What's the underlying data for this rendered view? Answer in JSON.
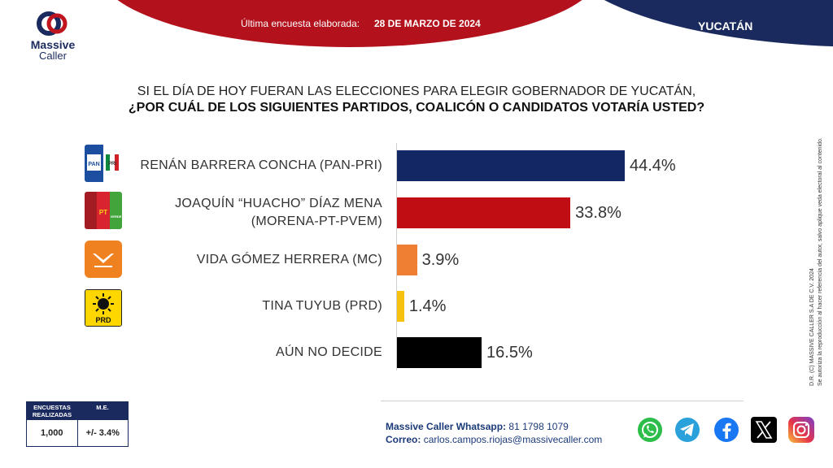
{
  "header": {
    "survey_label": "Última encuesta elaborada:",
    "survey_date": "28 DE MARZO DE 2024",
    "state": "YUCATÁN"
  },
  "logo": {
    "line1": "Massive",
    "line2": "Caller"
  },
  "question": {
    "line1": "SI EL DÍA DE HOY FUERAN LAS ELECCIONES PARA ELEGIR GOBERNADOR DE YUCATÁN,",
    "line2": "¿POR CUÁL DE LOS SIGUIENTES PARTIDOS, COALICÓN  O CANDIDATOS VOTARÍA USTED?"
  },
  "chart_data": {
    "type": "bar",
    "orientation": "horizontal",
    "categories": [
      "RENÁN BARRERA CONCHA  (PAN-PRI)",
      "JOAQUÍN “HUACHO” DÍAZ MENA (MORENA-PT-PVEM)",
      "VIDA GÓMEZ HERRERA (MC)",
      "TINA TUYUB (PRD)",
      "AÚN NO DECIDE"
    ],
    "label_lines": [
      [
        "RENÁN BARRERA CONCHA  (PAN-PRI)"
      ],
      [
        "JOAQUÍN “HUACHO” DÍAZ MENA",
        "(MORENA-PT-PVEM)"
      ],
      [
        "VIDA GÓMEZ HERRERA (MC)"
      ],
      [
        "TINA TUYUB (PRD)"
      ],
      [
        "AÚN NO DECIDE"
      ]
    ],
    "values": [
      44.4,
      33.8,
      3.9,
      1.4,
      16.5
    ],
    "value_labels": [
      "44.4%",
      "33.8%",
      "3.9%",
      "1.4%",
      "16.5%"
    ],
    "colors": [
      "#142765",
      "#c00d13",
      "#ee7f33",
      "#f6c10f",
      "#000000"
    ],
    "xlim": [
      0,
      50
    ],
    "grid": false,
    "legend": "none"
  },
  "party_logos": [
    {
      "icon": "pan-pri-logo",
      "texts": [
        "PAN",
        "PRI"
      ]
    },
    {
      "icon": "morena-pt-pvem-logo",
      "texts": [
        "PT",
        "VERDE"
      ]
    },
    {
      "icon": "movimiento-ciudadano-logo",
      "texts": []
    },
    {
      "icon": "prd-logo",
      "texts": [
        "PRD"
      ]
    }
  ],
  "copyright": {
    "line1": "D.R. (C) MASSIVE CALLER S.A DE C.V. 2024",
    "line2": "Se autoriza la reproducción al hacer referencia del autor, salvo aplique veda electoral al contenido."
  },
  "stats": {
    "col1_header": "ENCUESTAS REALIZADAS",
    "col2_header": "M.E.",
    "col1_value": "1,000",
    "col2_value": "+/- 3.4%"
  },
  "contact": {
    "whatsapp_label": "Massive Caller Whatsapp:",
    "whatsapp_value": "81 1798 1079",
    "email_label": "Correo:",
    "email_value": "carlos.campos.riojas@massivecaller.com"
  },
  "social_icons": [
    "whatsapp-icon",
    "telegram-icon",
    "facebook-icon",
    "x-icon",
    "instagram-icon"
  ]
}
